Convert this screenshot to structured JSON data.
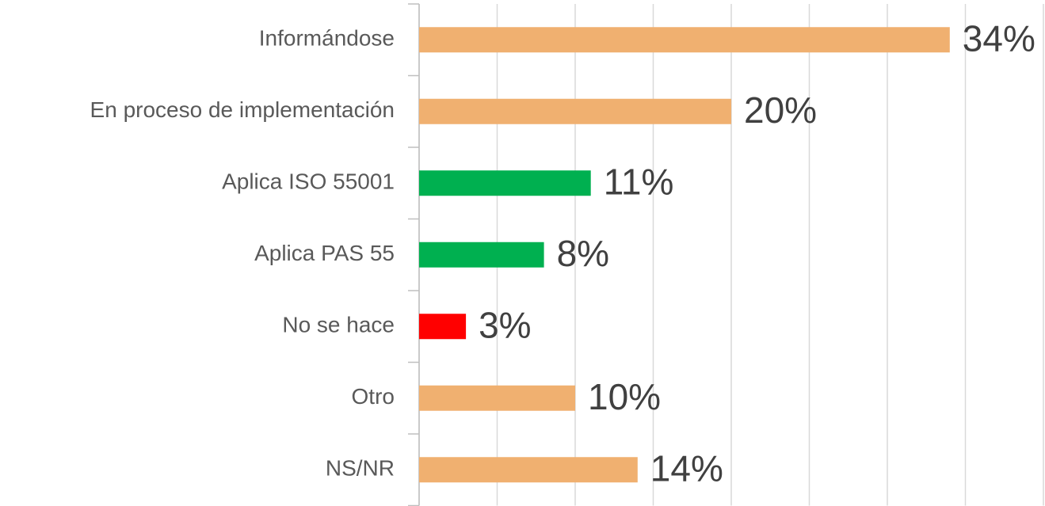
{
  "chart_data": {
    "type": "barh",
    "categories": [
      "Informándose",
      "En proceso de implementación",
      "Aplica ISO 55001",
      "Aplica PAS 55",
      "No se hace",
      "Otro",
      "NS/NR"
    ],
    "values": [
      34,
      20,
      11,
      8,
      3,
      10,
      14
    ],
    "value_labels": [
      "34%",
      "20%",
      "11%",
      "8%",
      "3%",
      "10%",
      "14%"
    ],
    "colors": [
      "#f0b070",
      "#f0b070",
      "#00b050",
      "#00b050",
      "#ff0000",
      "#f0b070",
      "#f0b070"
    ],
    "xlim": [
      0,
      40
    ],
    "xticks": [
      0,
      5,
      10,
      15,
      20,
      25,
      30,
      35,
      40
    ],
    "grid": true
  }
}
